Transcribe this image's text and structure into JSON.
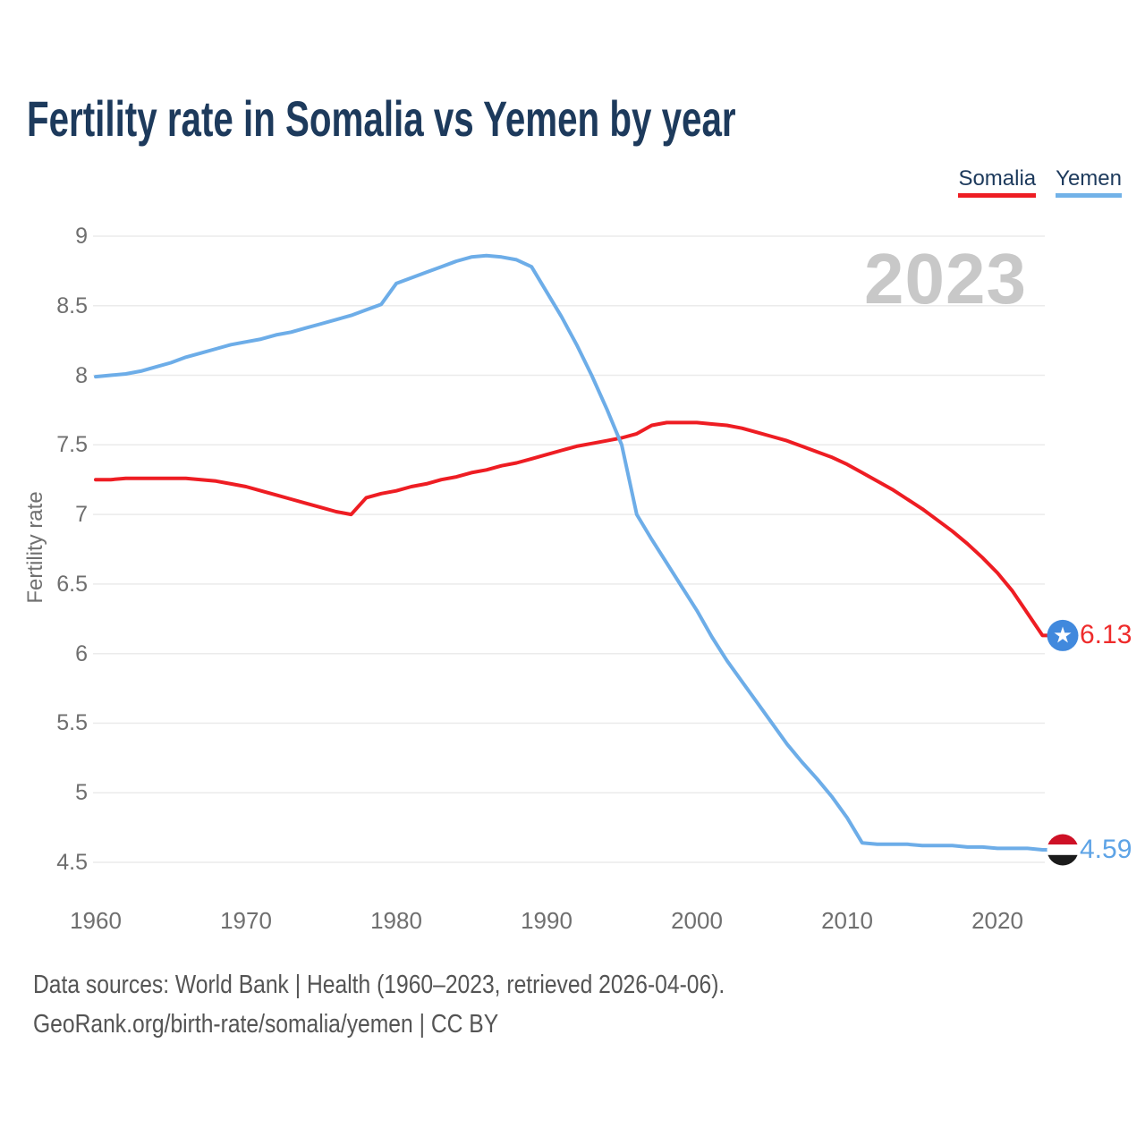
{
  "title": "Fertility rate in Somalia vs Yemen by year",
  "legend": {
    "items": [
      {
        "label": "Somalia",
        "color": "#ee1d23"
      },
      {
        "label": "Yemen",
        "color": "#72b2e8"
      }
    ]
  },
  "watermark": "2023",
  "y_axis": {
    "label": "Fertility rate"
  },
  "end_labels": [
    {
      "series": "Somalia",
      "value": "6.13",
      "flag": "somalia-star-flag",
      "text_color": "#ee2b2b"
    },
    {
      "series": "Yemen",
      "value": "4.59",
      "flag": "yemen-tricolor-flag",
      "text_color": "#5da3e6"
    }
  ],
  "footer": {
    "line1": "Data sources: World Bank | Health (1960–2023, retrieved 2026-04-06).",
    "line2": "GeoRank.org/birth-rate/somalia/yemen | CC BY"
  },
  "colors": {
    "somalia_line": "#ee1d23",
    "yemen_line": "#6dade8",
    "title_text": "#1d3a5c",
    "axis_text": "#6f6f6f",
    "watermark_text": "#c8c8c8",
    "gridline": "#ebebeb",
    "footer_text": "#545454",
    "somalia_flag_blue": "#4189dd",
    "yemen_flag_red": "#ce1126",
    "yemen_flag_black": "#1b1b1b"
  },
  "chart_data": {
    "type": "line",
    "title": "Fertility rate in Somalia vs Yemen by year",
    "xlabel": "",
    "ylabel": "Fertility rate",
    "xlim": [
      1960,
      2023
    ],
    "ylim": [
      4.5,
      9
    ],
    "grid": "horizontal",
    "legend_position": "top-right",
    "yticks": [
      9,
      8.5,
      8,
      7.5,
      7,
      6.5,
      6,
      5.5,
      5,
      4.5
    ],
    "xticks": [
      1960,
      1970,
      1980,
      1990,
      2000,
      2010,
      2020
    ],
    "x": [
      1960,
      1961,
      1962,
      1963,
      1964,
      1965,
      1966,
      1967,
      1968,
      1969,
      1970,
      1971,
      1972,
      1973,
      1974,
      1975,
      1976,
      1977,
      1978,
      1979,
      1980,
      1981,
      1982,
      1983,
      1984,
      1985,
      1986,
      1987,
      1988,
      1989,
      1990,
      1991,
      1992,
      1993,
      1994,
      1995,
      1996,
      1997,
      1998,
      1999,
      2000,
      2001,
      2002,
      2003,
      2004,
      2005,
      2006,
      2007,
      2008,
      2009,
      2010,
      2011,
      2012,
      2013,
      2014,
      2015,
      2016,
      2017,
      2018,
      2019,
      2020,
      2021,
      2022,
      2023
    ],
    "series": [
      {
        "name": "Somalia",
        "color": "#ee1d23",
        "end_value": 6.13,
        "values": [
          7.25,
          7.25,
          7.26,
          7.26,
          7.26,
          7.26,
          7.26,
          7.25,
          7.24,
          7.22,
          7.2,
          7.17,
          7.14,
          7.11,
          7.08,
          7.05,
          7.02,
          7.0,
          7.12,
          7.15,
          7.17,
          7.2,
          7.22,
          7.25,
          7.27,
          7.3,
          7.32,
          7.35,
          7.37,
          7.4,
          7.43,
          7.46,
          7.49,
          7.51,
          7.53,
          7.55,
          7.58,
          7.64,
          7.66,
          7.66,
          7.66,
          7.65,
          7.64,
          7.62,
          7.59,
          7.56,
          7.53,
          7.49,
          7.45,
          7.41,
          7.36,
          7.3,
          7.24,
          7.18,
          7.11,
          7.04,
          6.96,
          6.88,
          6.79,
          6.69,
          6.58,
          6.45,
          6.29,
          6.13
        ]
      },
      {
        "name": "Yemen",
        "color": "#6dade8",
        "end_value": 4.59,
        "values": [
          7.99,
          8.0,
          8.01,
          8.03,
          8.06,
          8.09,
          8.13,
          8.16,
          8.19,
          8.22,
          8.24,
          8.26,
          8.29,
          8.31,
          8.34,
          8.37,
          8.4,
          8.43,
          8.47,
          8.51,
          8.66,
          8.7,
          8.74,
          8.78,
          8.82,
          8.85,
          8.86,
          8.85,
          8.83,
          8.78,
          8.6,
          8.42,
          8.22,
          8.0,
          7.76,
          7.5,
          7.0,
          6.82,
          6.65,
          6.48,
          6.31,
          6.12,
          5.95,
          5.8,
          5.65,
          5.5,
          5.35,
          5.22,
          5.1,
          4.97,
          4.82,
          4.64,
          4.63,
          4.63,
          4.63,
          4.62,
          4.62,
          4.62,
          4.61,
          4.61,
          4.6,
          4.6,
          4.6,
          4.59
        ]
      }
    ]
  }
}
